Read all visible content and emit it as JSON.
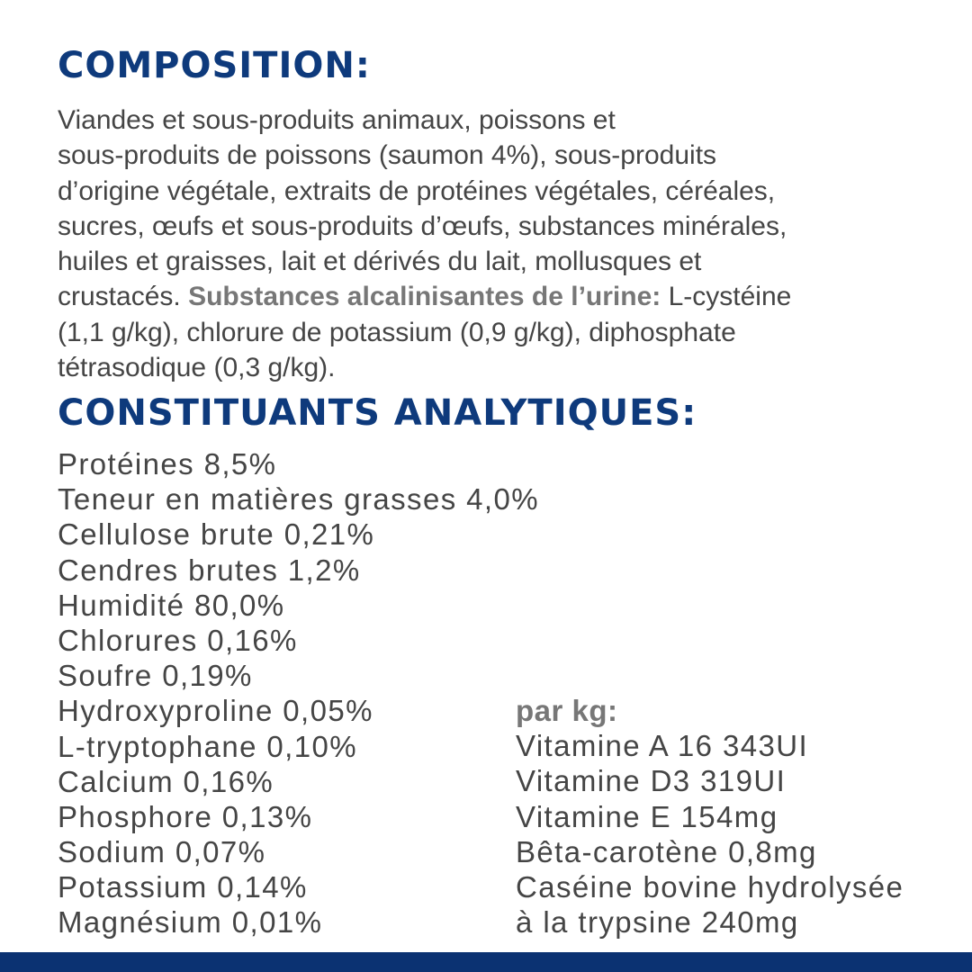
{
  "composition": {
    "heading": "COMPOSITION:",
    "lines": [
      "Viandes et sous-produits animaux, poissons et",
      "sous-produits de poissons (saumon 4%), sous-produits",
      "d’origine végétale, extraits de protéines végétales, céréales,",
      "sucres, œufs et sous-produits d’œufs, substances minérales,",
      "huiles et graisses, lait et dérivés du lait, mollusques et"
    ],
    "line6_pre": "crustacés. ",
    "bold_label": "Substances alcalinisantes de l’urine:",
    "line6_post": " L-cystéine",
    "lines_end": [
      "(1,1 g/kg), chlorure de potassium (0,9 g/kg), diphosphate",
      "tétrasodique (0,3 g/kg)."
    ]
  },
  "analytical": {
    "heading": "CONSTITUANTS ANALYTIQUES:",
    "items": [
      "Protéines 8,5%",
      "Teneur en matières grasses 4,0%",
      "Cellulose brute 0,21%",
      "Cendres brutes 1,2%",
      "Humidité 80,0%",
      "Chlorures 0,16%",
      "Soufre 0,19%",
      "Hydroxyproline 0,05%",
      "L-tryptophane 0,10%",
      "Calcium 0,16%",
      "Phosphore 0,13%",
      "Sodium 0,07%",
      "Potassium 0,14%",
      "Magnésium 0,01%"
    ],
    "per_kg_label": "par kg:",
    "per_kg_items": [
      "Vitamine A 16 343UI",
      "Vitamine D3 319UI",
      "Vitamine E 154mg",
      "Bêta-carotène 0,8mg",
      "Caséine bovine hydrolysée",
      "à la trypsine 240mg"
    ]
  },
  "colors": {
    "heading": "#0e3a7c",
    "text": "#454545",
    "bottom_bar": "#0b3272"
  }
}
